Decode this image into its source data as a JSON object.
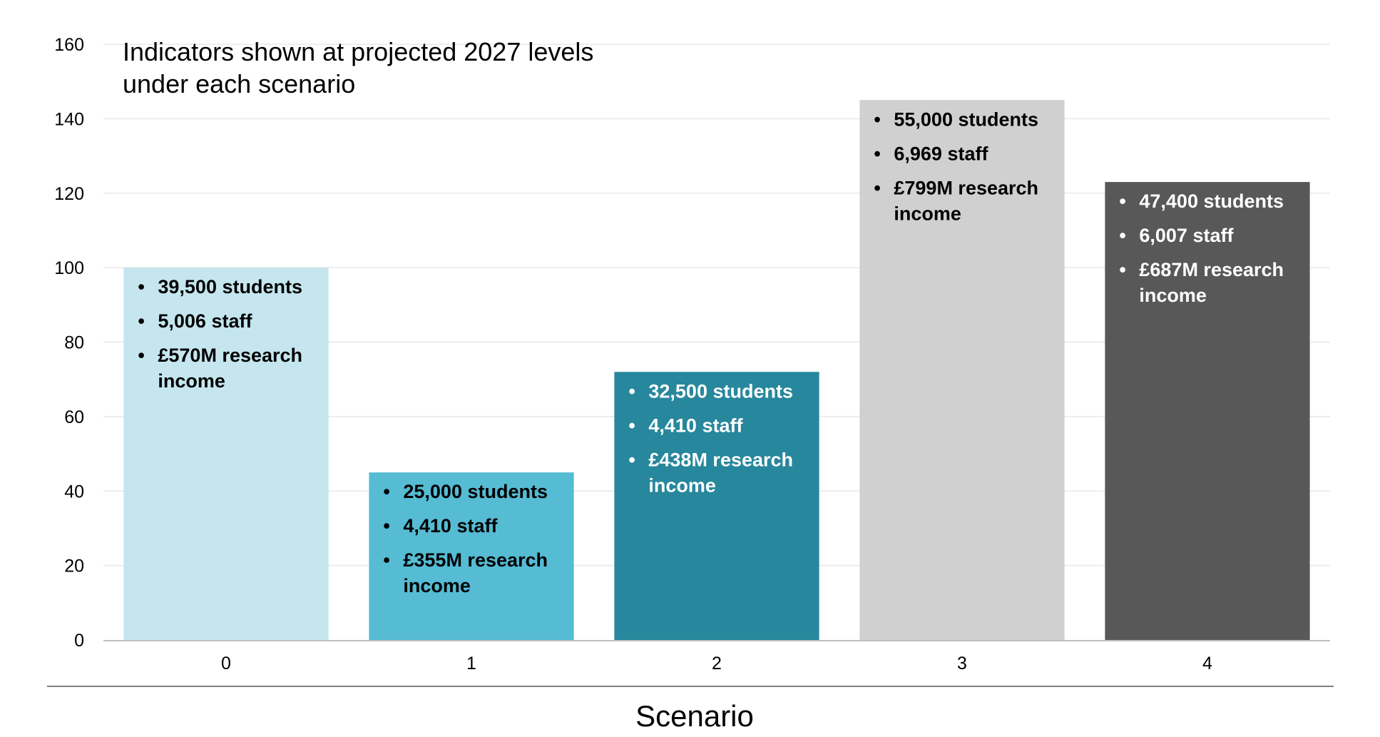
{
  "chart_data": {
    "type": "bar",
    "title_lines": [
      "Indicators shown at projected 2027 levels",
      "under each scenario"
    ],
    "xlabel": "Scenario",
    "ylabel": "",
    "ylim": [
      0,
      160
    ],
    "y_ticks": [
      0,
      20,
      40,
      60,
      80,
      100,
      120,
      140,
      160
    ],
    "grid": true,
    "categories": [
      "0",
      "1",
      "2",
      "3",
      "4"
    ],
    "values": [
      100,
      45,
      72,
      145,
      123
    ],
    "colors": [
      "#c5e6ef",
      "#55bcd4",
      "#27879c",
      "#d0d0d0",
      "#585858"
    ],
    "text_colors": [
      "#000000",
      "#000000",
      "#ffffff",
      "#000000",
      "#ffffff"
    ],
    "annotations": [
      {
        "bullets": [
          "39,500 students",
          "5,006 staff",
          [
            "£570M research",
            "income"
          ]
        ]
      },
      {
        "bullets": [
          "25,000 students",
          "4,410 staff",
          [
            "£355M research",
            "income"
          ]
        ]
      },
      {
        "bullets": [
          "32,500 students",
          "4,410 staff",
          [
            "£438M research",
            "income"
          ]
        ]
      },
      {
        "bullets": [
          "55,000 students",
          "6,969 staff",
          [
            "£799M research",
            "income"
          ]
        ]
      },
      {
        "bullets": [
          "47,400 students",
          "6,007 staff",
          [
            "£687M research",
            "income"
          ]
        ]
      }
    ]
  }
}
